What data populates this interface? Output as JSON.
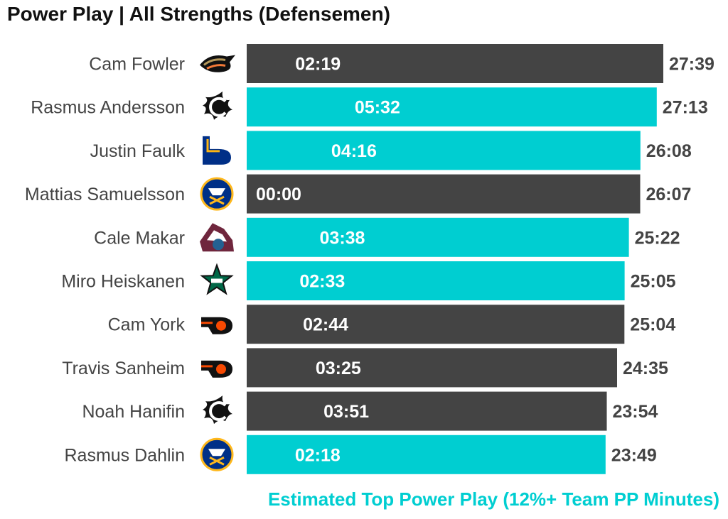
{
  "title": "Power Play | All Strengths (Defensemen)",
  "footnote": "Estimated Top Power Play (12%+ Team PP Minutes)",
  "colors": {
    "top_pp": "#00CED1",
    "other": "#444444",
    "total_label": "#444444"
  },
  "chart_data": {
    "type": "bar",
    "orientation": "horizontal",
    "title": "Power Play | All Strengths (Defensemen)",
    "xlabel": "",
    "ylabel": "",
    "xlim": [
      0,
      29
    ],
    "units": "minutes",
    "legend": "Estimated Top Power Play (12%+ Team PP Minutes)",
    "categories": [
      "Cam Fowler",
      "Rasmus Andersson",
      "Justin Faulk",
      "Mattias Samuelsson",
      "Cale Makar",
      "Miro Heiskanen",
      "Cam York",
      "Travis Sanheim",
      "Noah Hanifin",
      "Rasmus Dahlin"
    ],
    "teams": [
      "ducks",
      "flames",
      "blues",
      "sabres",
      "avalanche",
      "stars",
      "flyers",
      "flyers",
      "flames",
      "sabres"
    ],
    "values": [
      27.65,
      27.217,
      26.133,
      26.117,
      25.367,
      25.083,
      25.067,
      24.583,
      23.9,
      23.817
    ],
    "total_labels": [
      "27:39",
      "27:13",
      "26:08",
      "26:07",
      "25:22",
      "25:05",
      "25:04",
      "24:35",
      "23:54",
      "23:49"
    ],
    "pp_labels": [
      "02:19",
      "05:32",
      "04:16",
      "00:00",
      "03:38",
      "02:33",
      "02:44",
      "03:25",
      "03:51",
      "02:18"
    ],
    "top_pp": [
      false,
      true,
      true,
      false,
      true,
      true,
      false,
      false,
      false,
      true
    ]
  }
}
